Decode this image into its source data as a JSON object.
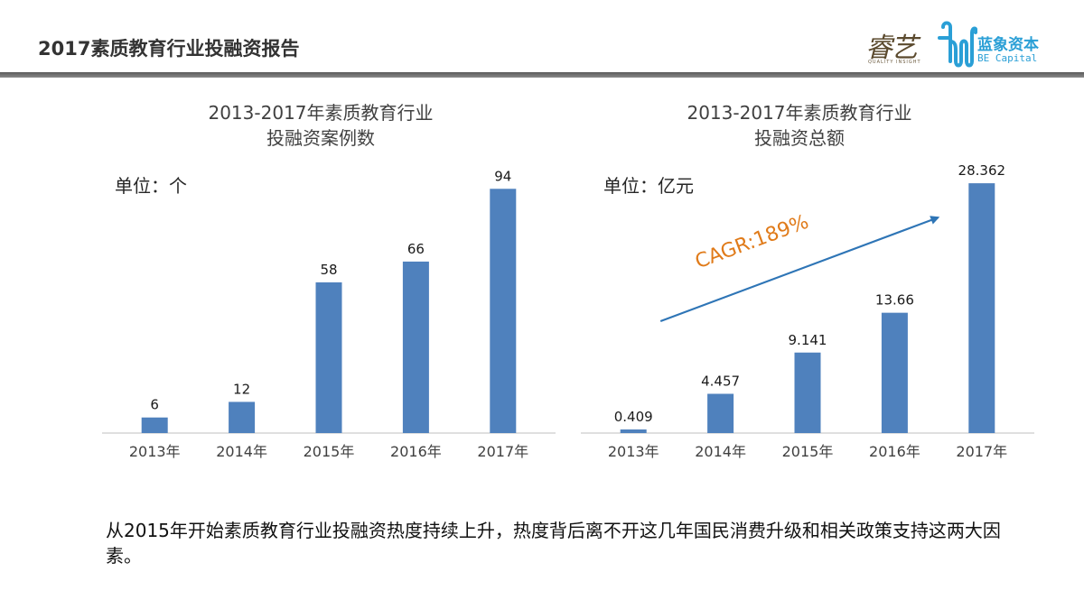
{
  "header": {
    "title": "2017素质教育行业投融资报告",
    "logo_ruiyi_cn": "睿艺",
    "logo_ruiyi_en": "QUALITY  INSIGHT",
    "logo_be_cn": "蓝象资本",
    "logo_be_en": "BE Capital"
  },
  "chart_left": {
    "title_line1": "2013-2017年素质教育行业",
    "title_line2": "投融资案例数",
    "unit": "单位：个"
  },
  "chart_right": {
    "title_line1": "2013-2017年素质教育行业",
    "title_line2": "投融资总额",
    "unit": "单位：亿元",
    "annotation": "CAGR:189%"
  },
  "chart_data": [
    {
      "type": "bar",
      "title": "2013-2017年素质教育行业 投融资案例数",
      "unit": "单位：个",
      "categories": [
        "2013年",
        "2014年",
        "2015年",
        "2016年",
        "2017年"
      ],
      "values": [
        6,
        12,
        58,
        66,
        94
      ],
      "value_labels": [
        "6",
        "12",
        "58",
        "66",
        "94"
      ],
      "ylim": [
        0,
        100
      ],
      "grid": false,
      "bar_color": "#4f81bd"
    },
    {
      "type": "bar",
      "title": "2013-2017年素质教育行业 投融资总额",
      "unit": "单位：亿元",
      "categories": [
        "2013年",
        "2014年",
        "2015年",
        "2016年",
        "2017年"
      ],
      "values": [
        0.409,
        4.457,
        9.141,
        13.66,
        28.362
      ],
      "value_labels": [
        "0.409",
        "4.457",
        "9.141",
        "13.66",
        "28.362"
      ],
      "ylim": [
        0,
        29.5
      ],
      "grid": false,
      "bar_color": "#4f81bd",
      "annotations": [
        "CAGR:189%"
      ],
      "annotation_color": "#e07b1a",
      "arrow_color": "#2e75b6"
    }
  ],
  "summary": {
    "text": "从2015年开始素质教育行业投融资热度持续上升，热度背后离不开这几年国民消费升级和相关政策支持这两大因素。"
  }
}
